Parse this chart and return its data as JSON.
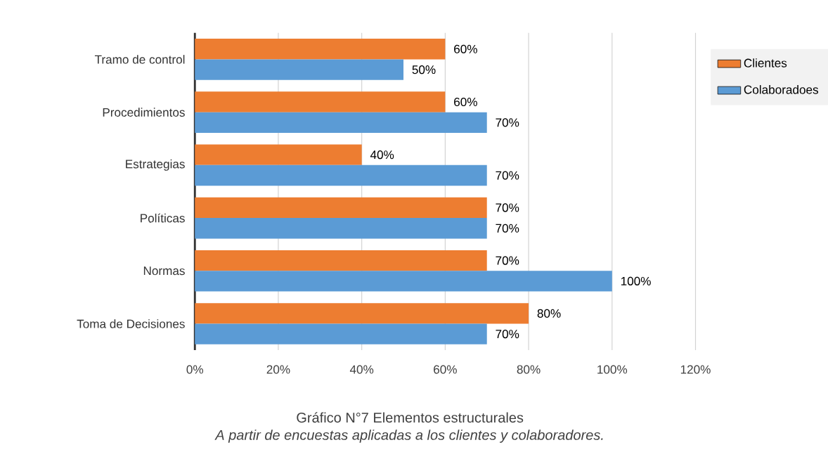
{
  "chart_data": {
    "type": "bar",
    "orientation": "horizontal",
    "title": "Gráfico N°7 Elementos estructurales",
    "annotations": [
      "A partir de encuestas aplicadas a los clientes y colaboradores."
    ],
    "categories": [
      "Tramo de control",
      "Procedimientos",
      "Estrategias",
      "Políticas",
      "Normas",
      "Toma de Decisiones"
    ],
    "series": [
      {
        "name": "Clientes",
        "color": "#ed7d31",
        "values": [
          60,
          60,
          40,
          70,
          70,
          80
        ],
        "value_labels": [
          "60%",
          "60%",
          "40%",
          "70%",
          "70%",
          "80%"
        ]
      },
      {
        "name": "Colaboradoes",
        "color": "#5b9bd5",
        "values": [
          50,
          70,
          70,
          70,
          100,
          70
        ],
        "value_labels": [
          "50%",
          "70%",
          "70%",
          "70%",
          "100%",
          "70%"
        ]
      }
    ],
    "xlim": [
      0,
      120
    ],
    "xticks": [
      {
        "value": 0,
        "label": "0%"
      },
      {
        "value": 20,
        "label": "20%"
      },
      {
        "value": 40,
        "label": "40%"
      },
      {
        "value": 60,
        "label": "60%"
      },
      {
        "value": 80,
        "label": "80%"
      },
      {
        "value": 100,
        "label": "100%"
      },
      {
        "value": 120,
        "label": "120%"
      }
    ],
    "grid": "x",
    "legend": "right"
  }
}
